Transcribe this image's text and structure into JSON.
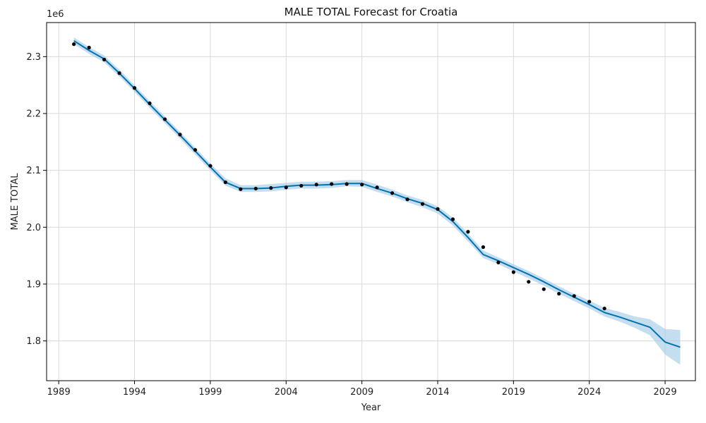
{
  "chart_data": {
    "type": "line",
    "title": "MALE TOTAL Forecast for Croatia",
    "xlabel": "Year",
    "ylabel": "MALE TOTAL",
    "y_offset_label": "1e6",
    "xlim": [
      1988.2,
      2031.0
    ],
    "ylim": [
      1730000,
      2360000
    ],
    "x_ticks": [
      1989,
      1994,
      1999,
      2004,
      2009,
      2014,
      2019,
      2024,
      2029
    ],
    "x_tick_labels": [
      "1989",
      "1994",
      "1999",
      "2004",
      "2009",
      "2014",
      "2019",
      "2024",
      "2029"
    ],
    "y_ticks": [
      1800000,
      1900000,
      2000000,
      2100000,
      2200000,
      2300000
    ],
    "y_tick_labels": [
      "1.8",
      "1.9",
      "2.0",
      "2.1",
      "2.2",
      "2.3"
    ],
    "grid": true,
    "colors": {
      "forecast_line": "#0072b2",
      "uncertainty_band": "#a6cde6",
      "observed_points": "#000000"
    },
    "series": [
      {
        "kind": "observed",
        "x": [
          1990,
          1991,
          1992,
          1993,
          1994,
          1995,
          1996,
          1997,
          1998,
          1999,
          2000,
          2001,
          2002,
          2003,
          2004,
          2005,
          2006,
          2007,
          2008,
          2009,
          2010,
          2011,
          2012,
          2013,
          2014,
          2015,
          2016,
          2017,
          2018,
          2019,
          2020,
          2021,
          2022,
          2023,
          2024,
          2025
        ],
        "values": [
          2322000,
          2316000,
          2295000,
          2271000,
          2245000,
          2218000,
          2190000,
          2163000,
          2136000,
          2108000,
          2079000,
          2067000,
          2068000,
          2069000,
          2070000,
          2073000,
          2075000,
          2076000,
          2076000,
          2075000,
          2070000,
          2060000,
          2049000,
          2041000,
          2032000,
          2014000,
          1992000,
          1965000,
          1938000,
          1921000,
          1904000,
          1891000,
          1883000,
          1879000,
          1869000,
          1857000
        ]
      },
      {
        "kind": "forecast",
        "x": [
          1990,
          1991,
          1992,
          1993,
          1994,
          1995,
          1996,
          1997,
          1998,
          1999,
          2000,
          2001,
          2002,
          2003,
          2004,
          2005,
          2006,
          2007,
          2008,
          2009,
          2010,
          2011,
          2012,
          2013,
          2014,
          2015,
          2016,
          2017,
          2018,
          2019,
          2020,
          2021,
          2022,
          2023,
          2024,
          2025,
          2026,
          2027,
          2028,
          2029,
          2030
        ],
        "values": [
          2328000,
          2311000,
          2296000,
          2271000,
          2244000,
          2216000,
          2189000,
          2162000,
          2134000,
          2106000,
          2079000,
          2068000,
          2068000,
          2069000,
          2072000,
          2074000,
          2074000,
          2075000,
          2077000,
          2077000,
          2068000,
          2060000,
          2050000,
          2042000,
          2031000,
          2010000,
          1982000,
          1952000,
          1941000,
          1929000,
          1917000,
          1904000,
          1890000,
          1877000,
          1864000,
          1850000,
          1842000,
          1833000,
          1824000,
          1798000,
          1789000
        ],
        "lower": [
          2322000,
          2305000,
          2290000,
          2265000,
          2238000,
          2210000,
          2183000,
          2156000,
          2128000,
          2100000,
          2073000,
          2062000,
          2062000,
          2063000,
          2066000,
          2068000,
          2068000,
          2069000,
          2072000,
          2071000,
          2062000,
          2054000,
          2044000,
          2035000,
          2024000,
          2003000,
          1975000,
          1946000,
          1935000,
          1922000,
          1910000,
          1897000,
          1883000,
          1870000,
          1857000,
          1843000,
          1834000,
          1823000,
          1810000,
          1776000,
          1758000
        ],
        "upper": [
          2334000,
          2317000,
          2302000,
          2277000,
          2250000,
          2222000,
          2195000,
          2168000,
          2140000,
          2112000,
          2086000,
          2074000,
          2074000,
          2076000,
          2078000,
          2080000,
          2080000,
          2081000,
          2083000,
          2083000,
          2075000,
          2066000,
          2056000,
          2048000,
          2037000,
          2017000,
          1989000,
          1959000,
          1947000,
          1935000,
          1923000,
          1910000,
          1896000,
          1883000,
          1871000,
          1858000,
          1851000,
          1843000,
          1838000,
          1821000,
          1819000
        ]
      }
    ]
  }
}
